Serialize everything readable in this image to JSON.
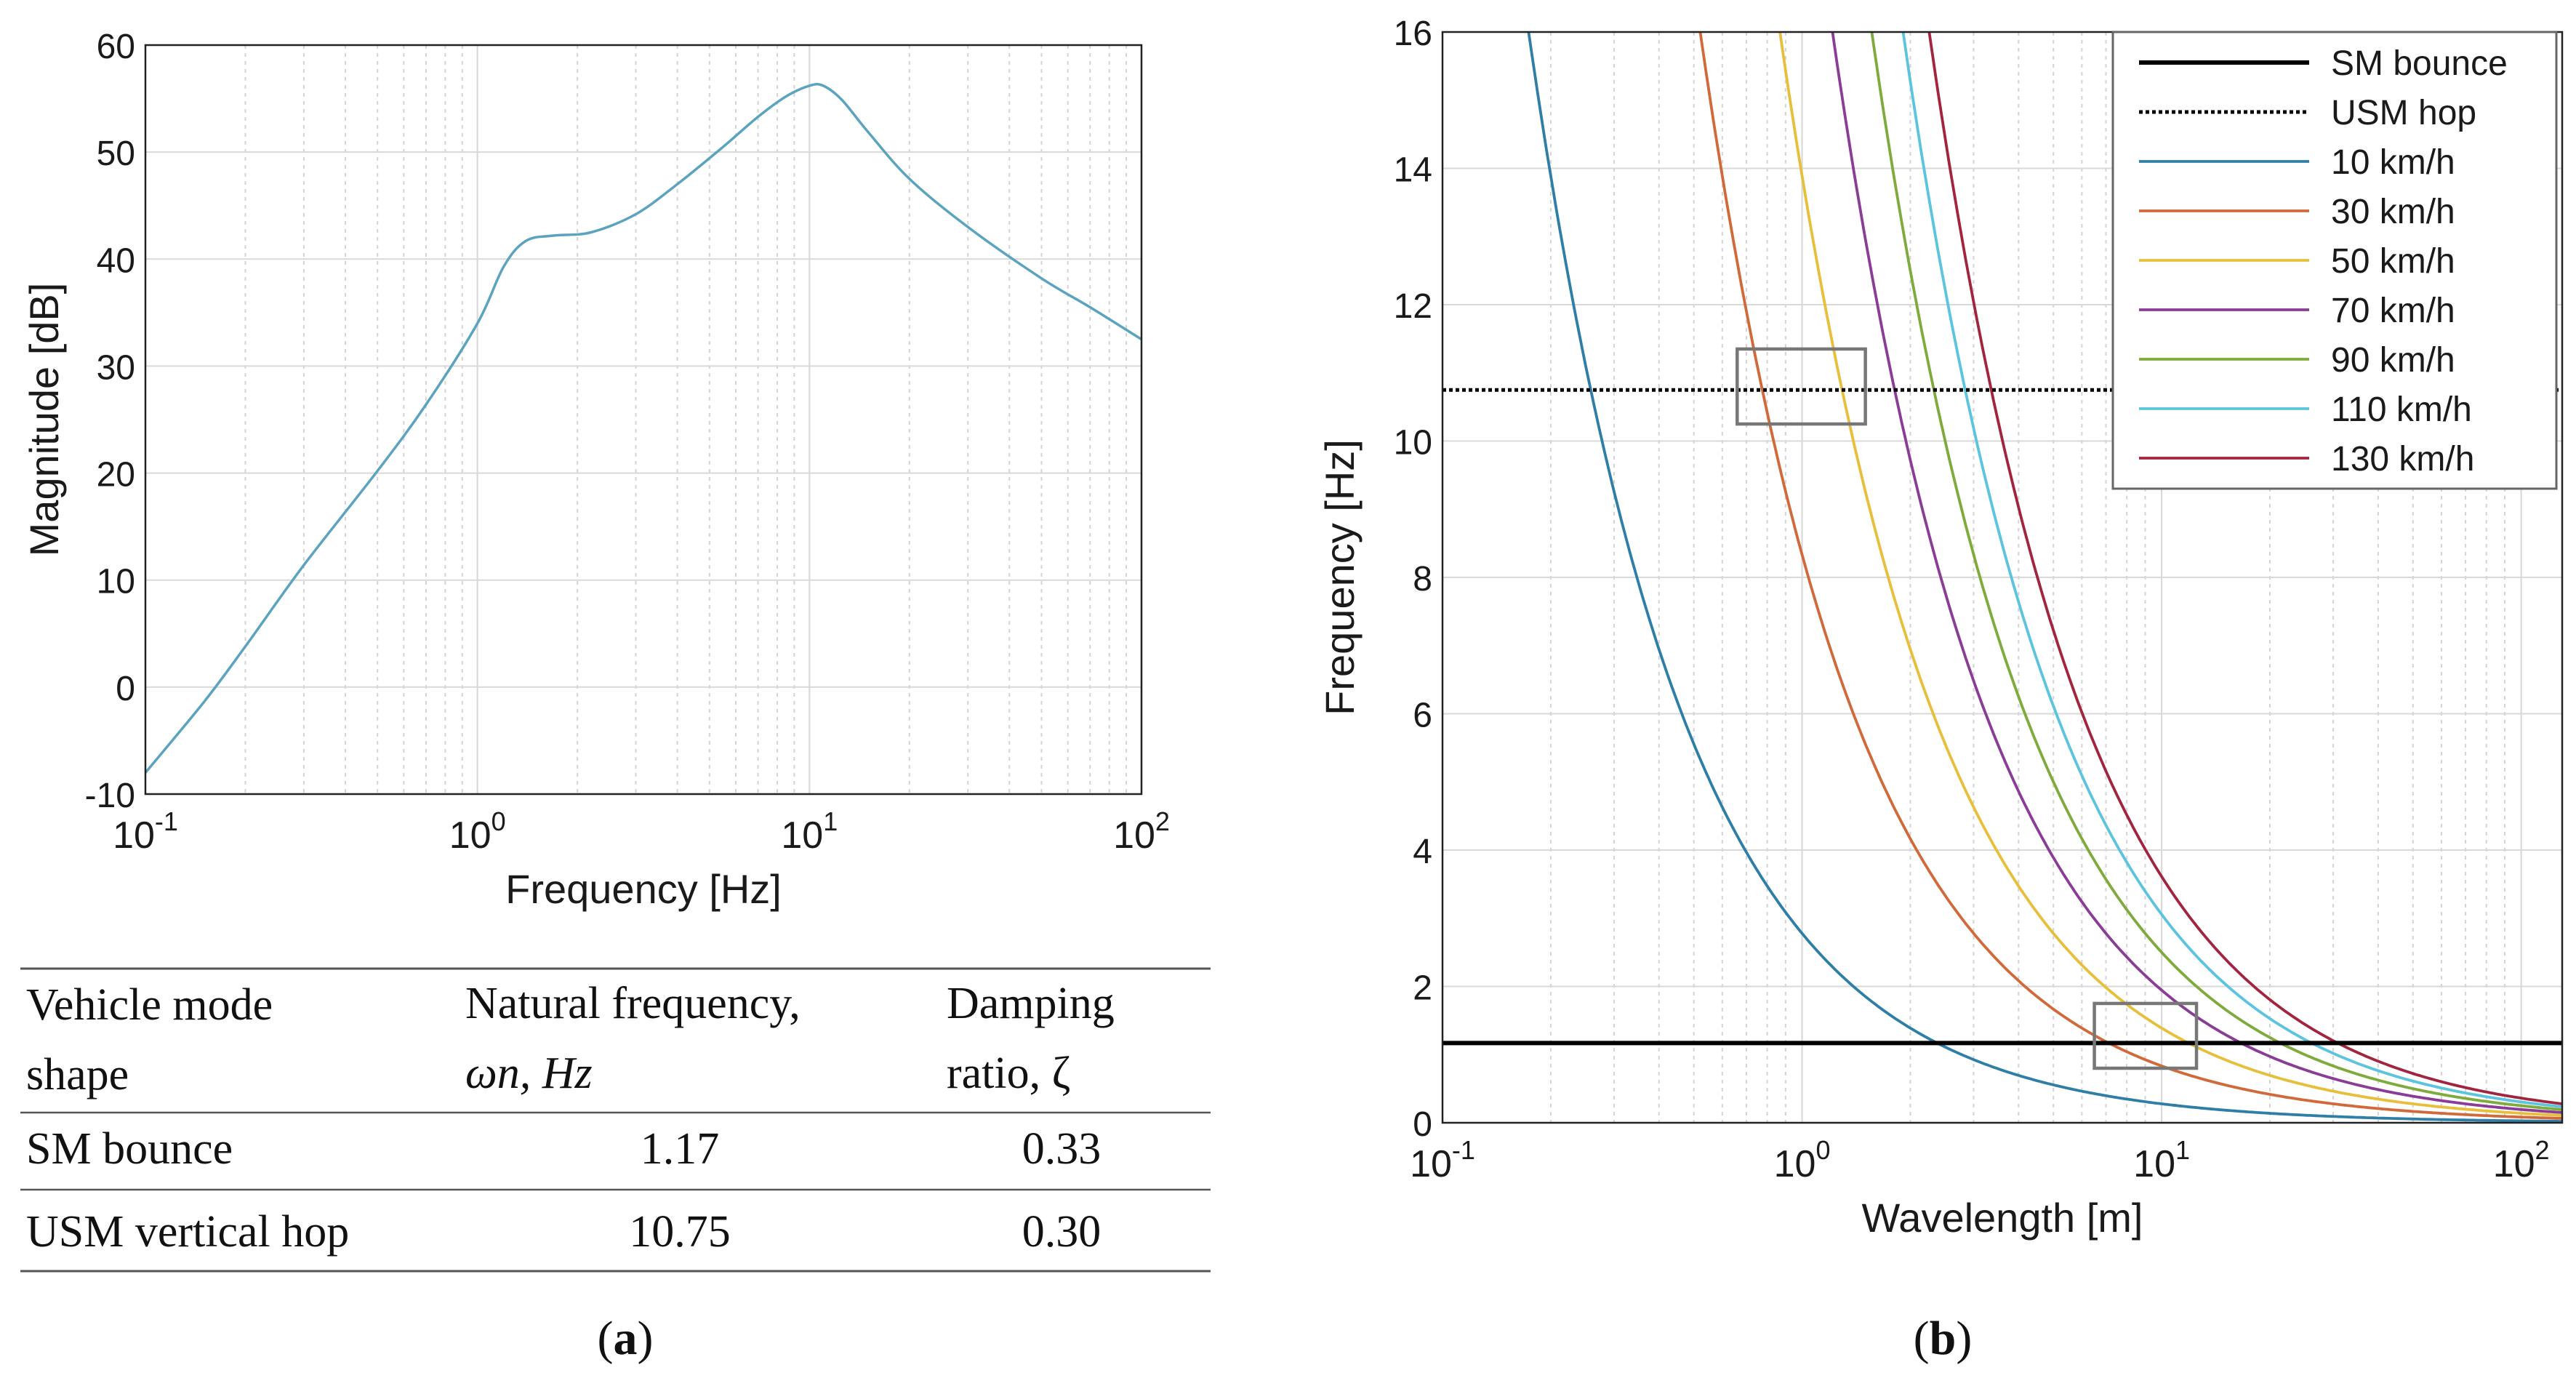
{
  "chart_data": [
    {
      "type": "line",
      "panel": "a",
      "xscale": "log",
      "xlabel": "Frequency [Hz]",
      "ylabel": "Magnitude [dB]",
      "xlim": [
        0.1,
        100
      ],
      "ylim": [
        -10,
        60
      ],
      "yticks": [
        "-10",
        "0",
        "10",
        "20",
        "30",
        "40",
        "50",
        "60"
      ],
      "xticks": [
        {
          "base": "10",
          "exp": "-1"
        },
        {
          "base": "10",
          "exp": "0"
        },
        {
          "base": "10",
          "exp": "1"
        },
        {
          "base": "10",
          "exp": "2"
        }
      ],
      "grid": true,
      "color": "#5ba3bf",
      "series": [
        {
          "name": "Magnitude",
          "x": [
            0.1,
            0.15,
            0.2,
            0.3,
            0.5,
            0.7,
            1.0,
            1.2,
            1.4,
            1.7,
            2.2,
            3.0,
            4.0,
            5.5,
            7.0,
            8.5,
            10.0,
            11.0,
            12.5,
            15.0,
            20.0,
            30.0,
            50.0,
            70.0,
            100.0
          ],
          "y": [
            -8,
            -1.4,
            3.8,
            11.4,
            20.2,
            26.4,
            34,
            39.3,
            41.7,
            42.2,
            42.5,
            44.2,
            47,
            50.5,
            53.3,
            55.2,
            56.2,
            56.2,
            54.9,
            51.9,
            47.5,
            43,
            38.2,
            35.5,
            32.5
          ]
        }
      ]
    },
    {
      "type": "line",
      "panel": "b",
      "xscale": "log",
      "xlabel": "Wavelength [m]",
      "ylabel": "Frequency [Hz]",
      "xlim": [
        0.1,
        130
      ],
      "ylim": [
        0,
        16
      ],
      "yticks": [
        "0",
        "2",
        "4",
        "6",
        "8",
        "10",
        "12",
        "14",
        "16"
      ],
      "xticks": [
        {
          "base": "10",
          "exp": "-1"
        },
        {
          "base": "10",
          "exp": "0"
        },
        {
          "base": "10",
          "exp": "1"
        },
        {
          "base": "10",
          "exp": "2"
        }
      ],
      "grid": true,
      "legend_position": "top-right",
      "reference_lines": [
        {
          "name": "SM bounce",
          "y": 1.17,
          "style": "solid",
          "color": "#000000"
        },
        {
          "name": "USM hop",
          "y": 10.75,
          "style": "dotted",
          "color": "#000000"
        }
      ],
      "series": [
        {
          "name": "10 km/h",
          "speed_kmh": 10,
          "relation": "f = v / wavelength",
          "color": "#2e7ea8"
        },
        {
          "name": "30 km/h",
          "speed_kmh": 30,
          "relation": "f = v / wavelength",
          "color": "#d2693a"
        },
        {
          "name": "50 km/h",
          "speed_kmh": 50,
          "relation": "f = v / wavelength",
          "color": "#e8bf3b"
        },
        {
          "name": "70 km/h",
          "speed_kmh": 70,
          "relation": "f = v / wavelength",
          "color": "#8a3c96"
        },
        {
          "name": "90 km/h",
          "speed_kmh": 90,
          "relation": "f = v / wavelength",
          "color": "#7eab3c"
        },
        {
          "name": "110 km/h",
          "speed_kmh": 110,
          "relation": "f = v / wavelength",
          "color": "#5cc4df"
        },
        {
          "name": "130 km/h",
          "speed_kmh": 130,
          "relation": "f = v / wavelength",
          "color": "#a3243f"
        }
      ],
      "highlight_boxes": [
        {
          "x_range": [
            0.66,
            1.5
          ],
          "y_range": [
            10.25,
            11.35
          ]
        },
        {
          "x_range": [
            6.5,
            12.5
          ],
          "y_range": [
            0.8,
            1.75
          ]
        }
      ]
    }
  ],
  "table": {
    "headers": [
      [
        "Vehicle mode",
        "shape"
      ],
      [
        "Natural frequency,",
        "ωn, Hz"
      ],
      [
        "Damping",
        "ratio, ζ"
      ]
    ],
    "rows": [
      {
        "mode": "SM bounce",
        "freq": "1.17",
        "damping": "0.33"
      },
      {
        "mode": "USM vertical hop",
        "freq": "10.75",
        "damping": "0.30"
      }
    ]
  },
  "captions": {
    "a": {
      "open": "(",
      "letter": "a",
      "close": ")"
    },
    "b": {
      "open": "(",
      "letter": "b",
      "close": ")"
    }
  }
}
